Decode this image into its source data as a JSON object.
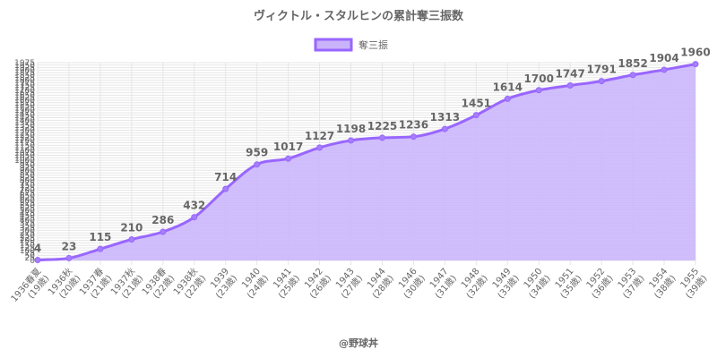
{
  "chart_data": {
    "type": "area",
    "title": "ヴィクトル・スタルヒンの累計奪三振数",
    "legend": {
      "position": "top",
      "label": "奪三振"
    },
    "colors": {
      "line": "#9966ff",
      "fill": "#c9b3fb",
      "point": "#a57efc",
      "grid": "#e6e6e6",
      "text": "#666666"
    },
    "categories": [
      [
        "1936春夏",
        "(19歳)"
      ],
      [
        "1936秋",
        "(20歳)"
      ],
      [
        "1937春",
        "(21歳)"
      ],
      [
        "1937秋",
        "(21歳)"
      ],
      [
        "1938春",
        "(22歳)"
      ],
      [
        "1938秋",
        "(22歳)"
      ],
      [
        "1939",
        "(23歳)"
      ],
      [
        "1940",
        "(24歳)"
      ],
      [
        "1941",
        "(25歳)"
      ],
      [
        "1942",
        "(26歳)"
      ],
      [
        "1943",
        "(27歳)"
      ],
      [
        "1944",
        "(28歳)"
      ],
      [
        "1946",
        "(30歳)"
      ],
      [
        "1947",
        "(31歳)"
      ],
      [
        "1948",
        "(32歳)"
      ],
      [
        "1949",
        "(33歳)"
      ],
      [
        "1950",
        "(34歳)"
      ],
      [
        "1951",
        "(35歳)"
      ],
      [
        "1952",
        "(36歳)"
      ],
      [
        "1953",
        "(37歳)"
      ],
      [
        "1954",
        "(38歳)"
      ],
      [
        "1955",
        "(39歳)"
      ]
    ],
    "series": [
      {
        "name": "奪三振",
        "values": [
          4,
          23,
          115,
          210,
          286,
          432,
          714,
          959,
          1017,
          1127,
          1198,
          1225,
          1236,
          1313,
          1451,
          1614,
          1700,
          1747,
          1791,
          1852,
          1904,
          1960
        ]
      }
    ],
    "ylim": [
      0,
      1975
    ],
    "yticks": [
      0,
      25,
      50,
      75,
      100,
      125,
      150,
      175,
      200,
      225,
      250,
      275,
      300,
      325,
      350,
      375,
      400,
      425,
      450,
      475,
      500,
      525,
      550,
      575,
      600,
      625,
      650,
      675,
      700,
      725,
      750,
      775,
      800,
      825,
      850,
      875,
      900,
      925,
      950,
      975,
      1000,
      1025,
      1050,
      1075,
      1100,
      1125,
      1150,
      1175,
      1200,
      1225,
      1250,
      1275,
      1300,
      1325,
      1350,
      1375,
      1400,
      1425,
      1450,
      1475,
      1500,
      1525,
      1550,
      1575,
      1600,
      1625,
      1650,
      1675,
      1700,
      1725,
      1750,
      1775,
      1800,
      1825,
      1850,
      1875,
      1900,
      1925,
      1950,
      1975
    ],
    "grid": true
  },
  "credit": "@野球丼"
}
